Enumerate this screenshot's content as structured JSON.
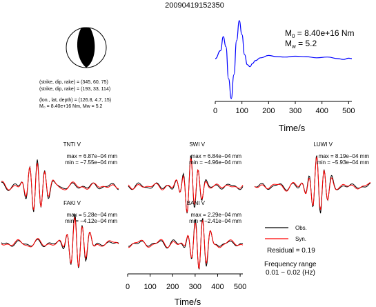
{
  "title": "20090419152350",
  "mechanism": {
    "line1": "(strike, dip, rake) = (345, 60, 75)",
    "line2": "(strike, dip, rake) = (193, 33, 114)",
    "line3": "(lon., lat, depth) = (126.8, 4.7, 15)",
    "line4": "M₀ = 8.40e+16 Nm, Mw = 5.2",
    "strike1": 345,
    "dip1": 60,
    "rake1": 75,
    "strike2": 193,
    "dip2": 33,
    "rake2": 114,
    "lon": 126.8,
    "lat": 4.7,
    "depth": 15
  },
  "stf": {
    "m0_prefix": "M",
    "m0_sub": "0",
    "m0_value": " = 8.40e+16 Nm",
    "mw_prefix": "M",
    "mw_sub": "w",
    "mw_value": " = 5.2",
    "xlabel": "Time/s",
    "ticks": [
      "0",
      "100",
      "200",
      "300",
      "400",
      "500"
    ],
    "xlim": [
      0,
      512
    ],
    "line_color": "#0000ff"
  },
  "stations": [
    {
      "name": "TNTI V",
      "max": "max = 6.87e−04 mm",
      "min": "min = −7.55e−04 mm"
    },
    {
      "name": "SWI V",
      "max": "max = 6.84e−04 mm",
      "min": "min = −4.96e−04 mm"
    },
    {
      "name": "LUWI V",
      "max": "max = 8.19e−04 mm",
      "min": "min = −5.93e−04 mm"
    },
    {
      "name": "FAKI V",
      "max": "max = 5.28e−04 mm",
      "min": "min = −4.12e−04 mm"
    },
    {
      "name": "BANI V",
      "max": "max = 2.29e−04 mm",
      "min": "min = −2.41e−04 mm"
    }
  ],
  "bottom_axis": {
    "xlabel": "Time/s",
    "ticks": [
      "0",
      "100",
      "200",
      "300",
      "400",
      "500"
    ],
    "xlim": [
      0,
      512
    ]
  },
  "legend": {
    "obs": "Obs.",
    "syn": "Syn.",
    "obs_color": "#000000",
    "syn_color": "#ff0000"
  },
  "residual": "Residual = 0.19",
  "freq_label": "Frequency range",
  "freq_range": "0.01 − 0.02 (Hz)",
  "chart_data": [
    {
      "type": "line",
      "x": [
        0,
        20,
        30,
        40,
        50,
        60,
        70,
        80,
        90,
        100,
        110,
        120,
        130,
        140,
        150,
        170,
        200,
        230,
        260,
        300,
        340,
        380,
        420,
        460,
        480,
        500,
        512
      ],
      "series": [
        {
          "values": [
            0.0,
            0.2,
            0.55,
            0.3,
            -0.5,
            -1.0,
            -0.4,
            0.45,
            0.95,
            0.6,
            0.1,
            -0.15,
            -0.2,
            -0.12,
            -0.05,
            0.02,
            0.08,
            0.05,
            0.04,
            0.06,
            0.05,
            0.02,
            0.04,
            0.0,
            -0.02,
            0.01,
            0.0
          ]
        }
      ],
      "xlabel": "Time/s",
      "xlim": [
        0,
        512
      ]
    }
  ]
}
